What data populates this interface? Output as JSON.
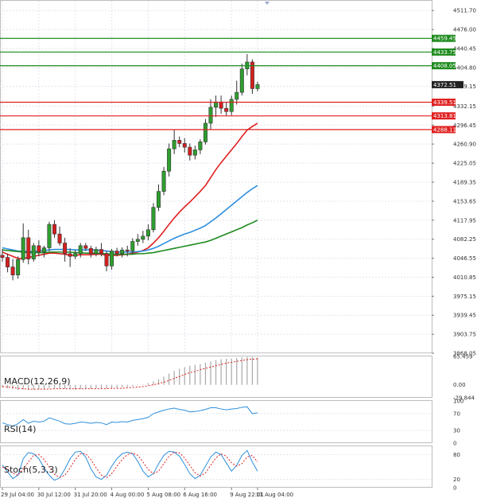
{
  "chart_data": [
    {
      "type": "candlestick",
      "title": "",
      "ylim": [
        3868.05,
        4530
      ],
      "y_ticks": [
        "4511.70",
        "4476.00",
        "4440.45",
        "4404.80",
        "4369.15",
        "4332.15",
        "4296.45",
        "4260.90",
        "4225.05",
        "4189.35",
        "4153.65",
        "4117.95",
        "4082.25",
        "4046.55",
        "4010.85",
        "3975.15",
        "3939.45",
        "3903.75",
        "3868.05"
      ],
      "x_ticks": [
        "29 Jul 04:00",
        "30 Jul 12:00",
        "31 Jul 20:00",
        "4 Aug 00:00",
        "5 Aug 08:00",
        "6 Aug 16:00",
        "9 Aug 22:01",
        "11 Aug 04:00"
      ],
      "current_price": "4372.51",
      "levels": [
        {
          "value": 4459.45,
          "label": "4459.45",
          "color": "#1e8b1e"
        },
        {
          "value": 4433.75,
          "label": "4433.75",
          "color": "#1e8b1e"
        },
        {
          "value": 4408.05,
          "label": "4408.05",
          "color": "#1e8b1e"
        },
        {
          "value": 4339.51,
          "label": "4339.51",
          "color": "#e02020"
        },
        {
          "value": 4313.81,
          "label": "4313.81",
          "color": "#e02020"
        },
        {
          "value": 4288.11,
          "label": "4288.11",
          "color": "#e02020"
        }
      ],
      "candles": [
        {
          "o": 4052,
          "h": 4064,
          "l": 4040,
          "c": 4048
        },
        {
          "o": 4048,
          "h": 4055,
          "l": 4020,
          "c": 4030
        },
        {
          "o": 4030,
          "h": 4045,
          "l": 4005,
          "c": 4015
        },
        {
          "o": 4015,
          "h": 4050,
          "l": 4008,
          "c": 4044
        },
        {
          "o": 4044,
          "h": 4112,
          "l": 4038,
          "c": 4085
        },
        {
          "o": 4085,
          "h": 4100,
          "l": 4035,
          "c": 4045
        },
        {
          "o": 4045,
          "h": 4075,
          "l": 4040,
          "c": 4070
        },
        {
          "o": 4070,
          "h": 4080,
          "l": 4050,
          "c": 4058
        },
        {
          "o": 4058,
          "h": 4070,
          "l": 4048,
          "c": 4066
        },
        {
          "o": 4066,
          "h": 4115,
          "l": 4060,
          "c": 4110
        },
        {
          "o": 4110,
          "h": 4118,
          "l": 4085,
          "c": 4092
        },
        {
          "o": 4092,
          "h": 4106,
          "l": 4070,
          "c": 4075
        },
        {
          "o": 4075,
          "h": 4085,
          "l": 4040,
          "c": 4055
        },
        {
          "o": 4055,
          "h": 4065,
          "l": 4030,
          "c": 4050
        },
        {
          "o": 4050,
          "h": 4062,
          "l": 4045,
          "c": 4055
        },
        {
          "o": 4055,
          "h": 4075,
          "l": 4048,
          "c": 4070
        },
        {
          "o": 4070,
          "h": 4075,
          "l": 4060,
          "c": 4065
        },
        {
          "o": 4065,
          "h": 4070,
          "l": 4048,
          "c": 4055
        },
        {
          "o": 4055,
          "h": 4068,
          "l": 4050,
          "c": 4063
        },
        {
          "o": 4063,
          "h": 4075,
          "l": 4050,
          "c": 4055
        },
        {
          "o": 4055,
          "h": 4060,
          "l": 4022,
          "c": 4032
        },
        {
          "o": 4032,
          "h": 4064,
          "l": 4025,
          "c": 4060
        },
        {
          "o": 4060,
          "h": 4066,
          "l": 4050,
          "c": 4055
        },
        {
          "o": 4055,
          "h": 4067,
          "l": 4048,
          "c": 4062
        },
        {
          "o": 4062,
          "h": 4070,
          "l": 4050,
          "c": 4060
        },
        {
          "o": 4060,
          "h": 4084,
          "l": 4055,
          "c": 4078
        },
        {
          "o": 4078,
          "h": 4092,
          "l": 4070,
          "c": 4082
        },
        {
          "o": 4082,
          "h": 4098,
          "l": 4075,
          "c": 4088
        },
        {
          "o": 4088,
          "h": 4110,
          "l": 4080,
          "c": 4100
        },
        {
          "o": 4100,
          "h": 4150,
          "l": 4095,
          "c": 4142
        },
        {
          "o": 4142,
          "h": 4185,
          "l": 4135,
          "c": 4172
        },
        {
          "o": 4172,
          "h": 4218,
          "l": 4165,
          "c": 4210
        },
        {
          "o": 4210,
          "h": 4262,
          "l": 4200,
          "c": 4252
        },
        {
          "o": 4252,
          "h": 4288,
          "l": 4242,
          "c": 4268
        },
        {
          "o": 4268,
          "h": 4275,
          "l": 4255,
          "c": 4262
        },
        {
          "o": 4262,
          "h": 4272,
          "l": 4245,
          "c": 4255
        },
        {
          "o": 4255,
          "h": 4262,
          "l": 4230,
          "c": 4240
        },
        {
          "o": 4240,
          "h": 4258,
          "l": 4232,
          "c": 4250
        },
        {
          "o": 4250,
          "h": 4270,
          "l": 4242,
          "c": 4265
        },
        {
          "o": 4265,
          "h": 4308,
          "l": 4260,
          "c": 4300
        },
        {
          "o": 4300,
          "h": 4345,
          "l": 4288,
          "c": 4330
        },
        {
          "o": 4330,
          "h": 4352,
          "l": 4312,
          "c": 4340
        },
        {
          "o": 4340,
          "h": 4352,
          "l": 4318,
          "c": 4328
        },
        {
          "o": 4328,
          "h": 4340,
          "l": 4314,
          "c": 4322
        },
        {
          "o": 4322,
          "h": 4352,
          "l": 4315,
          "c": 4345
        },
        {
          "o": 4345,
          "h": 4380,
          "l": 4335,
          "c": 4358
        },
        {
          "o": 4358,
          "h": 4412,
          "l": 4352,
          "c": 4402
        },
        {
          "o": 4402,
          "h": 4430,
          "l": 4390,
          "c": 4415
        },
        {
          "o": 4415,
          "h": 4420,
          "l": 4355,
          "c": 4365
        },
        {
          "o": 4365,
          "h": 4378,
          "l": 4360,
          "c": 4372.51
        }
      ],
      "ma_series": [
        {
          "color": "#e02020",
          "values": [
            4058,
            4054,
            4050,
            4046,
            4046,
            4048,
            4050,
            4052,
            4054,
            4056,
            4056,
            4055,
            4054,
            4052,
            4052,
            4053,
            4053,
            4053,
            4054,
            4054,
            4052,
            4052,
            4052,
            4053,
            4054,
            4056,
            4058,
            4061,
            4066,
            4075,
            4085,
            4097,
            4110,
            4122,
            4133,
            4143,
            4152,
            4162,
            4172,
            4183,
            4198,
            4213,
            4226,
            4238,
            4250,
            4262,
            4275,
            4287,
            4294,
            4300
          ]
        },
        {
          "color": "#2d8fdd",
          "values": [
            4066,
            4064,
            4062,
            4060,
            4059,
            4059,
            4059,
            4060,
            4061,
            4062,
            4063,
            4063,
            4063,
            4063,
            4062,
            4062,
            4062,
            4062,
            4062,
            4061,
            4060,
            4059,
            4058,
            4058,
            4058,
            4058,
            4059,
            4060,
            4062,
            4065,
            4069,
            4074,
            4079,
            4084,
            4088,
            4092,
            4095,
            4099,
            4103,
            4108,
            4115,
            4122,
            4130,
            4138,
            4146,
            4154,
            4162,
            4170,
            4177,
            4183
          ]
        },
        {
          "color": "#1e8b1e",
          "values": [
            4062,
            4061,
            4060,
            4059,
            4058,
            4057,
            4057,
            4057,
            4057,
            4058,
            4058,
            4058,
            4058,
            4058,
            4057,
            4057,
            4056,
            4056,
            4056,
            4055,
            4055,
            4054,
            4054,
            4054,
            4054,
            4054,
            4055,
            4055,
            4056,
            4057,
            4059,
            4061,
            4063,
            4065,
            4067,
            4069,
            4071,
            4073,
            4075,
            4077,
            4080,
            4084,
            4088,
            4092,
            4096,
            4100,
            4104,
            4109,
            4113,
            4118
          ]
        }
      ]
    },
    {
      "type": "bar",
      "title": "MACD(12,26,9)",
      "ylim": [
        -29.844,
        65.459
      ],
      "y_ticks": [
        "65.459",
        "0.00",
        "-29.844"
      ],
      "values": [
        -6,
        -8,
        -10,
        -12,
        -11,
        -12,
        -11,
        -11,
        -10,
        -8,
        -8,
        -8,
        -9,
        -10,
        -11,
        -10,
        -9,
        -9,
        -8,
        -8,
        -9,
        -8,
        -7,
        -6,
        -5,
        -3,
        -1,
        1,
        4,
        8,
        13,
        19,
        26,
        32,
        37,
        41,
        44,
        46,
        48,
        51,
        54,
        57,
        59,
        60,
        61,
        62,
        63,
        64,
        64,
        63
      ],
      "signal": [
        -4,
        -5,
        -6,
        -8,
        -9,
        -10,
        -10,
        -10,
        -10,
        -10,
        -9,
        -9,
        -9,
        -9,
        -9,
        -9,
        -9,
        -9,
        -9,
        -9,
        -9,
        -8,
        -8,
        -8,
        -7,
        -6,
        -5,
        -4,
        -2,
        0,
        3,
        6,
        10,
        15,
        19,
        24,
        28,
        31,
        35,
        38,
        41,
        44,
        47,
        50,
        52,
        54,
        56,
        58,
        59,
        60
      ]
    },
    {
      "type": "line",
      "title": "RSI(14)",
      "ylim": [
        0,
        100
      ],
      "y_ticks": [
        "100",
        "70",
        "30",
        "0"
      ],
      "values": [
        48,
        44,
        40,
        46,
        56,
        47,
        52,
        50,
        52,
        60,
        56,
        52,
        46,
        45,
        47,
        50,
        49,
        47,
        49,
        48,
        44,
        50,
        49,
        51,
        50,
        54,
        56,
        58,
        61,
        70,
        74,
        78,
        81,
        83,
        80,
        78,
        74,
        75,
        77,
        80,
        84,
        84,
        81,
        79,
        81,
        82,
        85,
        86,
        70,
        72
      ]
    },
    {
      "type": "line",
      "title": "Stoch(5,3,3)",
      "ylim": [
        0,
        100
      ],
      "y_ticks": [
        "80",
        "20",
        "0"
      ],
      "values": [
        55,
        38,
        22,
        30,
        70,
        85,
        82,
        70,
        48,
        30,
        18,
        24,
        45,
        70,
        86,
        88,
        74,
        46,
        26,
        20,
        30,
        52,
        70,
        82,
        86,
        82,
        64,
        40,
        26,
        34,
        58,
        78,
        88,
        86,
        76,
        56,
        34,
        22,
        30,
        52,
        74,
        86,
        80,
        60,
        40,
        54,
        78,
        90,
        62,
        40
      ],
      "signal": [
        50,
        45,
        35,
        30,
        45,
        62,
        78,
        80,
        68,
        50,
        32,
        25,
        30,
        48,
        68,
        82,
        82,
        68,
        48,
        30,
        24,
        34,
        52,
        68,
        80,
        84,
        78,
        62,
        44,
        34,
        40,
        58,
        76,
        86,
        84,
        72,
        54,
        36,
        28,
        36,
        54,
        72,
        82,
        76,
        60,
        52,
        58,
        74,
        78,
        62
      ]
    }
  ]
}
